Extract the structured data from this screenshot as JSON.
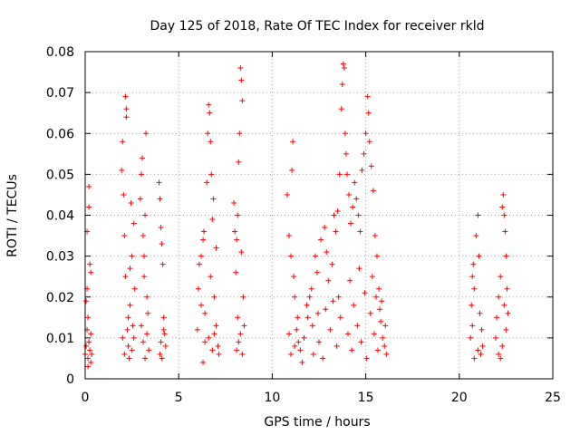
{
  "chart_data": {
    "type": "scatter",
    "title": "Day 125 of 2018, Rate Of TEC Index for receiver rkld",
    "xlabel": "GPS time / hours",
    "ylabel": "ROTI / TECUs",
    "xlim": [
      0,
      25
    ],
    "ylim": [
      0,
      0.08
    ],
    "x_ticks": [
      0,
      5,
      10,
      15,
      20,
      25
    ],
    "y_ticks": [
      0,
      0.01,
      0.02,
      0.03,
      0.04,
      0.05,
      0.06,
      0.07,
      0.08
    ],
    "x_tick_labels": [
      "0",
      "5",
      "10",
      "15",
      "20",
      "25"
    ],
    "y_tick_labels": [
      "0",
      "0.01",
      "0.02",
      "0.03",
      "0.04",
      "0.05",
      "0.06",
      "0.07",
      "0.08"
    ],
    "grid": true,
    "marker": "+",
    "color": "#ff0000",
    "series": [
      {
        "name": "ROTI",
        "points": [
          [
            0.0,
            0.006
          ],
          [
            0.05,
            0.008
          ],
          [
            0.1,
            0.012
          ],
          [
            0.1,
            0.036
          ],
          [
            0.1,
            0.022
          ],
          [
            0.15,
            0.005
          ],
          [
            0.15,
            0.015
          ],
          [
            0.2,
            0.047
          ],
          [
            0.2,
            0.042
          ],
          [
            0.2,
            0.009
          ],
          [
            0.25,
            0.007
          ],
          [
            0.25,
            0.028
          ],
          [
            0.3,
            0.004
          ],
          [
            0.3,
            0.026
          ],
          [
            0.3,
            0.011
          ],
          [
            0.35,
            0.006
          ],
          [
            0.05,
            0.019
          ],
          [
            0.15,
            0.003
          ],
          [
            1.95,
            0.051
          ],
          [
            2.0,
            0.058
          ],
          [
            2.05,
            0.045
          ],
          [
            2.1,
            0.035
          ],
          [
            2.15,
            0.025
          ],
          [
            2.15,
            0.069
          ],
          [
            2.2,
            0.064
          ],
          [
            2.2,
            0.066
          ],
          [
            2.25,
            0.012
          ],
          [
            2.3,
            0.008
          ],
          [
            2.35,
            0.005
          ],
          [
            2.4,
            0.018
          ],
          [
            2.45,
            0.043
          ],
          [
            2.5,
            0.03
          ],
          [
            2.55,
            0.013
          ],
          [
            2.6,
            0.01
          ],
          [
            2.65,
            0.022
          ],
          [
            2.0,
            0.01
          ],
          [
            2.1,
            0.006
          ],
          [
            2.3,
            0.015
          ],
          [
            2.5,
            0.007
          ],
          [
            2.6,
            0.038
          ],
          [
            2.4,
            0.027
          ],
          [
            2.95,
            0.044
          ],
          [
            3.0,
            0.05
          ],
          [
            3.05,
            0.054
          ],
          [
            3.1,
            0.035
          ],
          [
            3.15,
            0.025
          ],
          [
            3.2,
            0.04
          ],
          [
            3.25,
            0.06
          ],
          [
            3.3,
            0.011
          ],
          [
            3.35,
            0.016
          ],
          [
            3.4,
            0.007
          ],
          [
            3.1,
            0.009
          ],
          [
            3.2,
            0.005
          ],
          [
            3.0,
            0.013
          ],
          [
            3.3,
            0.02
          ],
          [
            3.15,
            0.03
          ],
          [
            3.95,
            0.048
          ],
          [
            4.0,
            0.044
          ],
          [
            4.05,
            0.037
          ],
          [
            4.1,
            0.033
          ],
          [
            4.15,
            0.028
          ],
          [
            4.2,
            0.015
          ],
          [
            4.25,
            0.011
          ],
          [
            4.3,
            0.008
          ],
          [
            4.0,
            0.006
          ],
          [
            4.1,
            0.005
          ],
          [
            4.2,
            0.012
          ],
          [
            4.05,
            0.009
          ],
          [
            6.0,
            0.012
          ],
          [
            6.05,
            0.022
          ],
          [
            6.1,
            0.028
          ],
          [
            6.2,
            0.03
          ],
          [
            6.3,
            0.034
          ],
          [
            6.35,
            0.036
          ],
          [
            6.4,
            0.016
          ],
          [
            6.5,
            0.048
          ],
          [
            6.55,
            0.06
          ],
          [
            6.6,
            0.067
          ],
          [
            6.65,
            0.065
          ],
          [
            6.7,
            0.058
          ],
          [
            6.75,
            0.05
          ],
          [
            6.8,
            0.039
          ],
          [
            6.85,
            0.044
          ],
          [
            6.9,
            0.02
          ],
          [
            7.0,
            0.013
          ],
          [
            7.1,
            0.008
          ],
          [
            7.15,
            0.006
          ],
          [
            6.3,
            0.004
          ],
          [
            6.6,
            0.01
          ],
          [
            6.8,
            0.007
          ],
          [
            6.4,
            0.009
          ],
          [
            6.9,
            0.011
          ],
          [
            6.2,
            0.018
          ],
          [
            6.7,
            0.025
          ],
          [
            7.0,
            0.032
          ],
          [
            7.95,
            0.043
          ],
          [
            8.0,
            0.036
          ],
          [
            8.05,
            0.026
          ],
          [
            8.1,
            0.034
          ],
          [
            8.15,
            0.04
          ],
          [
            8.2,
            0.053
          ],
          [
            8.25,
            0.06
          ],
          [
            8.3,
            0.076
          ],
          [
            8.35,
            0.073
          ],
          [
            8.4,
            0.068
          ],
          [
            8.45,
            0.02
          ],
          [
            8.5,
            0.013
          ],
          [
            8.1,
            0.007
          ],
          [
            8.2,
            0.009
          ],
          [
            8.3,
            0.011
          ],
          [
            8.4,
            0.006
          ],
          [
            8.15,
            0.015
          ],
          [
            8.35,
            0.031
          ],
          [
            10.8,
            0.045
          ],
          [
            10.9,
            0.035
          ],
          [
            11.0,
            0.03
          ],
          [
            11.05,
            0.051
          ],
          [
            11.1,
            0.058
          ],
          [
            11.15,
            0.025
          ],
          [
            11.2,
            0.02
          ],
          [
            11.3,
            0.012
          ],
          [
            11.4,
            0.009
          ],
          [
            11.0,
            0.006
          ],
          [
            11.2,
            0.008
          ],
          [
            10.9,
            0.011
          ],
          [
            11.35,
            0.015
          ],
          [
            11.5,
            0.007
          ],
          [
            11.7,
            0.01
          ],
          [
            11.9,
            0.015
          ],
          [
            12.0,
            0.02
          ],
          [
            12.1,
            0.022
          ],
          [
            12.3,
            0.03
          ],
          [
            12.4,
            0.026
          ],
          [
            12.6,
            0.034
          ],
          [
            12.8,
            0.037
          ],
          [
            12.9,
            0.031
          ],
          [
            13.0,
            0.024
          ],
          [
            13.2,
            0.028
          ],
          [
            13.3,
            0.04
          ],
          [
            13.4,
            0.036
          ],
          [
            13.5,
            0.041
          ],
          [
            13.6,
            0.05
          ],
          [
            13.7,
            0.066
          ],
          [
            13.75,
            0.072
          ],
          [
            13.8,
            0.077
          ],
          [
            13.85,
            0.076
          ],
          [
            13.9,
            0.06
          ],
          [
            13.95,
            0.055
          ],
          [
            14.0,
            0.05
          ],
          [
            14.1,
            0.045
          ],
          [
            14.2,
            0.038
          ],
          [
            14.3,
            0.042
          ],
          [
            14.4,
            0.048
          ],
          [
            14.5,
            0.044
          ],
          [
            14.6,
            0.04
          ],
          [
            14.7,
            0.036
          ],
          [
            14.8,
            0.051
          ],
          [
            14.9,
            0.055
          ],
          [
            15.0,
            0.06
          ],
          [
            15.1,
            0.069
          ],
          [
            15.15,
            0.065
          ],
          [
            15.2,
            0.058
          ],
          [
            15.3,
            0.052
          ],
          [
            15.4,
            0.046
          ],
          [
            15.5,
            0.035
          ],
          [
            15.6,
            0.03
          ],
          [
            15.7,
            0.022
          ],
          [
            15.8,
            0.014
          ],
          [
            15.9,
            0.01
          ],
          [
            16.0,
            0.008
          ],
          [
            16.1,
            0.006
          ],
          [
            11.6,
            0.004
          ],
          [
            12.2,
            0.006
          ],
          [
            12.5,
            0.009
          ],
          [
            12.7,
            0.005
          ],
          [
            13.1,
            0.012
          ],
          [
            13.45,
            0.008
          ],
          [
            13.65,
            0.015
          ],
          [
            14.05,
            0.011
          ],
          [
            14.25,
            0.007
          ],
          [
            14.55,
            0.013
          ],
          [
            14.75,
            0.009
          ],
          [
            15.05,
            0.005
          ],
          [
            15.25,
            0.016
          ],
          [
            15.45,
            0.011
          ],
          [
            15.65,
            0.007
          ],
          [
            15.85,
            0.019
          ],
          [
            16.05,
            0.013
          ],
          [
            12.15,
            0.013
          ],
          [
            12.85,
            0.017
          ],
          [
            13.55,
            0.02
          ],
          [
            14.35,
            0.018
          ],
          [
            14.95,
            0.021
          ],
          [
            15.35,
            0.025
          ],
          [
            15.75,
            0.017
          ],
          [
            11.85,
            0.018
          ],
          [
            12.45,
            0.016
          ],
          [
            13.25,
            0.019
          ],
          [
            14.15,
            0.024
          ],
          [
            14.65,
            0.027
          ],
          [
            15.55,
            0.02
          ],
          [
            20.6,
            0.01
          ],
          [
            20.65,
            0.018
          ],
          [
            20.7,
            0.025
          ],
          [
            20.75,
            0.028
          ],
          [
            20.8,
            0.022
          ],
          [
            20.9,
            0.035
          ],
          [
            21.0,
            0.04
          ],
          [
            21.05,
            0.03
          ],
          [
            21.1,
            0.016
          ],
          [
            21.2,
            0.012
          ],
          [
            21.25,
            0.008
          ],
          [
            20.8,
            0.005
          ],
          [
            21.0,
            0.007
          ],
          [
            20.7,
            0.013
          ],
          [
            21.15,
            0.006
          ],
          [
            21.95,
            0.01
          ],
          [
            22.0,
            0.015
          ],
          [
            22.1,
            0.02
          ],
          [
            22.2,
            0.025
          ],
          [
            22.3,
            0.042
          ],
          [
            22.35,
            0.045
          ],
          [
            22.4,
            0.04
          ],
          [
            22.45,
            0.036
          ],
          [
            22.5,
            0.03
          ],
          [
            22.55,
            0.022
          ],
          [
            22.6,
            0.016
          ],
          [
            22.3,
            0.008
          ],
          [
            22.1,
            0.006
          ],
          [
            22.5,
            0.012
          ],
          [
            22.2,
            0.005
          ],
          [
            22.4,
            0.018
          ]
        ]
      }
    ]
  }
}
